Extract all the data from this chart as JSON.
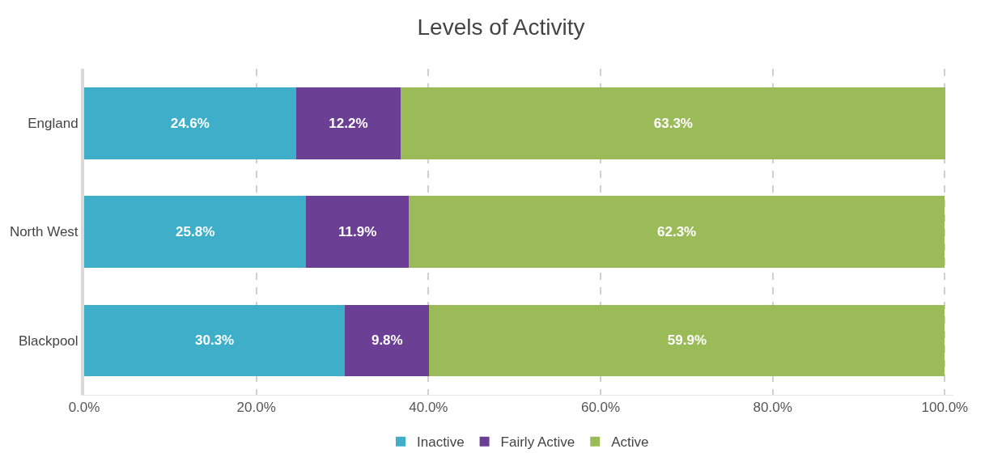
{
  "chart_data": {
    "type": "bar",
    "title": "Levels of Activity",
    "orientation": "horizontal",
    "stacked": true,
    "categories": [
      "England",
      "North West",
      "Blackpool"
    ],
    "series": [
      {
        "name": "Inactive",
        "color": "#3eaec9",
        "values": [
          24.6,
          25.8,
          30.3
        ],
        "value_labels": [
          "24.6%",
          "25.8%",
          "30.3%"
        ]
      },
      {
        "name": "Fairly Active",
        "color": "#6b3f93",
        "values": [
          12.2,
          11.9,
          9.8
        ],
        "value_labels": [
          "12.2%",
          "11.9%",
          "9.8%"
        ]
      },
      {
        "name": "Active",
        "color": "#9bbb59",
        "values": [
          63.3,
          62.3,
          59.9
        ],
        "value_labels": [
          "63.3%",
          "62.3%",
          "59.9%"
        ]
      }
    ],
    "xlim": [
      0,
      101
    ],
    "xticks": [
      {
        "value": 0,
        "label": "0.0%"
      },
      {
        "value": 20,
        "label": "20.0%"
      },
      {
        "value": 40,
        "label": "40.0%"
      },
      {
        "value": 60,
        "label": "60.0%"
      },
      {
        "value": 80,
        "label": "80.0%"
      },
      {
        "value": 100,
        "label": "100.0%"
      }
    ],
    "grid": "x",
    "legend": "bottom"
  }
}
